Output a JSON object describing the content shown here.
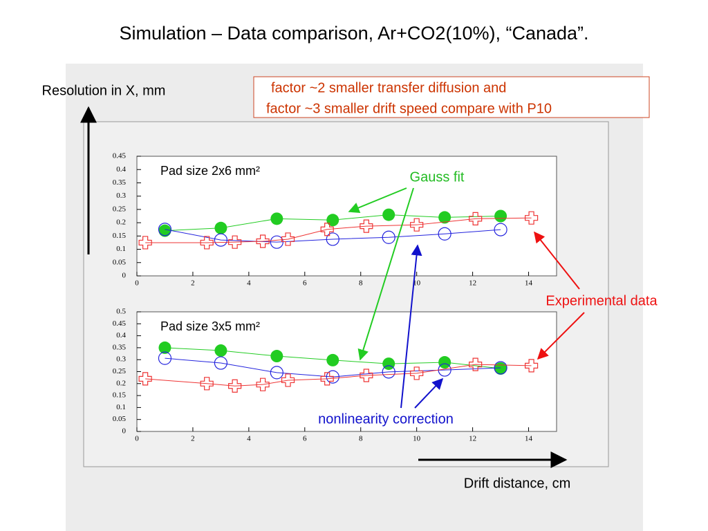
{
  "title": "Simulation – Data comparison, Ar+CO2(10%), “Canada”.",
  "y_axis_label": "Resolution in X, mm",
  "x_axis_label": "Drift distance, cm",
  "note": [
    "factor ~2 smaller transfer diffusion and",
    "factor ~3 smaller drift speed compare with P10"
  ],
  "annotations": {
    "gauss": "Gauss fit",
    "experimental": "Experimental data",
    "nonlinearity": "nonlinearity correction"
  },
  "chart_data": [
    {
      "type": "line",
      "title": "Pad size 2x6 mm²",
      "xlim": [
        0,
        15
      ],
      "ylim": [
        0,
        0.45
      ],
      "xticks": [
        0,
        2,
        4,
        6,
        8,
        10,
        12,
        14
      ],
      "yticks": [
        0,
        0.05,
        0.1,
        0.15,
        0.2,
        0.25,
        0.3,
        0.35,
        0.4,
        0.45
      ],
      "series": [
        {
          "color": "#22cc22",
          "marker": "filled-circle",
          "x": [
            1,
            3,
            5,
            7,
            9,
            11,
            13
          ],
          "values": [
            0.17,
            0.18,
            0.215,
            0.21,
            0.23,
            0.22,
            0.225
          ]
        },
        {
          "color": "#2222dd",
          "marker": "open-circle",
          "x": [
            1,
            3,
            5,
            7,
            9,
            11,
            13
          ],
          "values": [
            0.175,
            0.135,
            0.127,
            0.138,
            0.145,
            0.158,
            0.174
          ]
        },
        {
          "color": "#ee3333",
          "marker": "cross",
          "x": [
            0.3,
            2.5,
            3.5,
            4.5,
            5.4,
            6.8,
            8.2,
            10,
            12.1,
            14.1
          ],
          "values": [
            0.125,
            0.125,
            0.127,
            0.13,
            0.138,
            0.175,
            0.187,
            0.192,
            0.215,
            0.218
          ]
        }
      ]
    },
    {
      "type": "line",
      "title": "Pad size 3x5 mm²",
      "xlim": [
        0,
        15
      ],
      "ylim": [
        0,
        0.5
      ],
      "xticks": [
        0,
        2,
        4,
        6,
        8,
        10,
        12,
        14
      ],
      "yticks": [
        0,
        0.05,
        0.1,
        0.15,
        0.2,
        0.25,
        0.3,
        0.35,
        0.4,
        0.45,
        0.5
      ],
      "series": [
        {
          "color": "#22cc22",
          "marker": "filled-circle",
          "x": [
            1,
            3,
            5,
            7,
            9,
            11,
            13
          ],
          "values": [
            0.35,
            0.338,
            0.315,
            0.298,
            0.283,
            0.289,
            0.263
          ]
        },
        {
          "color": "#2222dd",
          "marker": "open-circle",
          "x": [
            1,
            3,
            5,
            7,
            9,
            11,
            13
          ],
          "values": [
            0.306,
            0.286,
            0.246,
            0.228,
            0.249,
            0.257,
            0.266
          ]
        },
        {
          "color": "#ee3333",
          "marker": "cross",
          "x": [
            0.3,
            2.5,
            3.5,
            4.5,
            5.4,
            6.8,
            8.2,
            10,
            12.1,
            14.1
          ],
          "values": [
            0.22,
            0.2,
            0.19,
            0.196,
            0.214,
            0.22,
            0.234,
            0.243,
            0.28,
            0.275
          ]
        }
      ]
    }
  ]
}
